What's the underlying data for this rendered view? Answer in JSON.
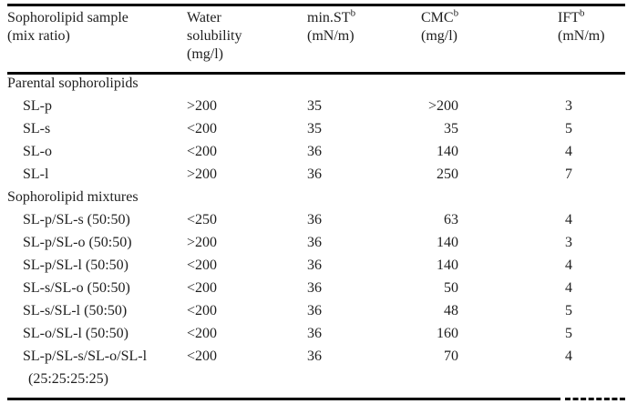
{
  "colors": {
    "background": "#ffffff",
    "text": "#1e1e1e",
    "rule": "#000000"
  },
  "table": {
    "columns": [
      {
        "line1": "Sophorolipid sample",
        "line2": "(mix ratio)"
      },
      {
        "line1": "Water",
        "line2": "solubility",
        "line3": "(mg/l)"
      },
      {
        "name": "min.ST",
        "sup": "b",
        "unit": "(mN/m)"
      },
      {
        "name": "CMC",
        "sup": "b",
        "unit": "(mg/l)"
      },
      {
        "name": "IFT",
        "sup": "b",
        "unit": "(mN/m)"
      }
    ],
    "sections": [
      {
        "title": "Parental sophorolipids",
        "rows": [
          {
            "sample": "SL-p",
            "water_solubility": ">200",
            "min_st": "35",
            "cmc": ">200",
            "ift": "3"
          },
          {
            "sample": "SL-s",
            "water_solubility": "<200",
            "min_st": "35",
            "cmc": "35",
            "ift": "5"
          },
          {
            "sample": "SL-o",
            "water_solubility": "<200",
            "min_st": "36",
            "cmc": "140",
            "ift": "4"
          },
          {
            "sample": "SL-l",
            "water_solubility": ">200",
            "min_st": "36",
            "cmc": "250",
            "ift": "7"
          }
        ]
      },
      {
        "title": "Sophorolipid mixtures",
        "rows": [
          {
            "sample": "SL-p/SL-s (50:50)",
            "water_solubility": "<250",
            "min_st": "36",
            "cmc": "63",
            "ift": "4"
          },
          {
            "sample": "SL-p/SL-o (50:50)",
            "water_solubility": ">200",
            "min_st": "36",
            "cmc": "140",
            "ift": "3"
          },
          {
            "sample": "SL-p/SL-l (50:50)",
            "water_solubility": "<200",
            "min_st": "36",
            "cmc": "140",
            "ift": "4"
          },
          {
            "sample": "SL-s/SL-o (50:50)",
            "water_solubility": "<200",
            "min_st": "36",
            "cmc": "50",
            "ift": "4"
          },
          {
            "sample": "SL-s/SL-l (50:50)",
            "water_solubility": "<200",
            "min_st": "36",
            "cmc": "48",
            "ift": "5"
          },
          {
            "sample": "SL-o/SL-l (50:50)",
            "water_solubility": "<200",
            "min_st": "36",
            "cmc": "160",
            "ift": "5"
          },
          {
            "sample": "SL-p/SL-s/SL-o/SL-l",
            "sample_line2": "(25:25:25:25)",
            "water_solubility": "<200",
            "min_st": "36",
            "cmc": "70",
            "ift": "4"
          }
        ]
      }
    ]
  }
}
